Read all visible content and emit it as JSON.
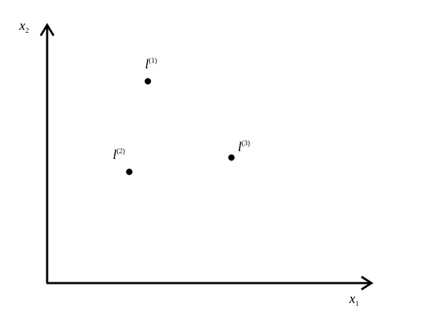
{
  "axes": {
    "x_label": {
      "base": "x",
      "subscript": "1"
    },
    "y_label": {
      "base": "x",
      "subscript": "2"
    }
  },
  "points": [
    {
      "base": "l",
      "superscript": "(1)"
    },
    {
      "base": "l",
      "superscript": "(2)"
    },
    {
      "base": "l",
      "superscript": "(3)"
    }
  ]
}
